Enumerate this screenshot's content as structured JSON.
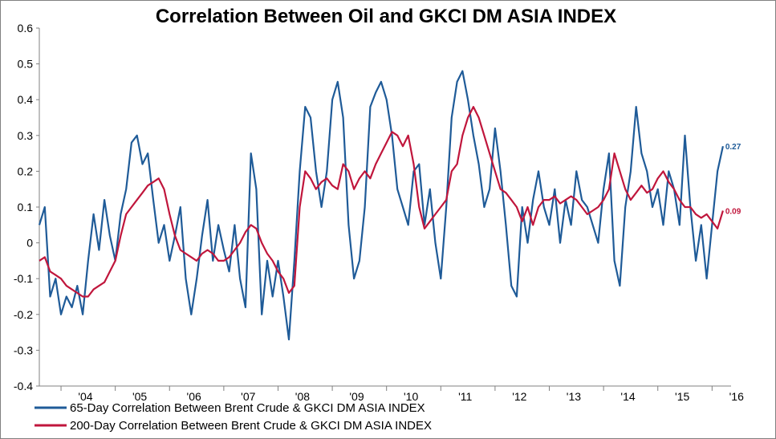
{
  "chart_data": {
    "type": "line",
    "title": "Correlation Between Oil and GKCI DM ASIA INDEX",
    "xlabel": "",
    "ylabel": "",
    "ylim": [
      -0.4,
      0.6
    ],
    "yticks": [
      "0.6",
      "0.5",
      "0.4",
      "0.3",
      "0.2",
      "0.1",
      "0",
      "-0.1",
      "-0.2",
      "-0.3",
      "-0.4"
    ],
    "xticks": [
      "'04",
      "'05",
      "'06",
      "'07",
      "'08",
      "'09",
      "'10",
      "'11",
      "'12",
      "'13",
      "'14",
      "'15",
      "'16"
    ],
    "xlim": [
      2003.6,
      2016.35
    ],
    "grid": false,
    "legend_position": "bottom",
    "series": [
      {
        "name": "65-Day Correlation Between Brent Crude & GKCI DM ASIA INDEX",
        "color": "#1f5b98",
        "end_label": "0.27",
        "x": [
          2003.6,
          2003.7,
          2003.8,
          2003.9,
          2004.0,
          2004.1,
          2004.2,
          2004.3,
          2004.4,
          2004.5,
          2004.6,
          2004.7,
          2004.8,
          2004.9,
          2005.0,
          2005.1,
          2005.2,
          2005.3,
          2005.4,
          2005.5,
          2005.6,
          2005.7,
          2005.8,
          2005.9,
          2006.0,
          2006.1,
          2006.2,
          2006.3,
          2006.4,
          2006.5,
          2006.6,
          2006.7,
          2006.8,
          2006.9,
          2007.0,
          2007.1,
          2007.2,
          2007.3,
          2007.4,
          2007.5,
          2007.6,
          2007.7,
          2007.8,
          2007.9,
          2008.0,
          2008.1,
          2008.2,
          2008.3,
          2008.4,
          2008.5,
          2008.6,
          2008.7,
          2008.8,
          2008.9,
          2009.0,
          2009.1,
          2009.2,
          2009.3,
          2009.4,
          2009.5,
          2009.6,
          2009.7,
          2009.8,
          2009.9,
          2010.0,
          2010.1,
          2010.2,
          2010.3,
          2010.4,
          2010.5,
          2010.6,
          2010.7,
          2010.8,
          2010.9,
          2011.0,
          2011.1,
          2011.2,
          2011.3,
          2011.4,
          2011.5,
          2011.6,
          2011.7,
          2011.8,
          2011.9,
          2012.0,
          2012.1,
          2012.2,
          2012.3,
          2012.4,
          2012.5,
          2012.6,
          2012.7,
          2012.8,
          2012.9,
          2013.0,
          2013.1,
          2013.2,
          2013.3,
          2013.4,
          2013.5,
          2013.6,
          2013.7,
          2013.8,
          2013.9,
          2014.0,
          2014.1,
          2014.2,
          2014.3,
          2014.4,
          2014.5,
          2014.6,
          2014.7,
          2014.8,
          2014.9,
          2015.0,
          2015.1,
          2015.2,
          2015.3,
          2015.4,
          2015.5,
          2015.6,
          2015.7,
          2015.8,
          2015.9,
          2016.0,
          2016.1,
          2016.2
        ],
        "y": [
          0.05,
          0.1,
          -0.15,
          -0.1,
          -0.2,
          -0.15,
          -0.18,
          -0.12,
          -0.2,
          -0.05,
          0.08,
          -0.02,
          0.12,
          0.02,
          -0.05,
          0.08,
          0.15,
          0.28,
          0.3,
          0.22,
          0.25,
          0.12,
          0.0,
          0.05,
          -0.05,
          0.02,
          0.1,
          -0.1,
          -0.2,
          -0.1,
          0.02,
          0.12,
          -0.05,
          0.05,
          -0.02,
          -0.08,
          0.05,
          -0.1,
          -0.18,
          0.25,
          0.15,
          -0.2,
          -0.05,
          -0.15,
          -0.05,
          -0.15,
          -0.27,
          -0.05,
          0.2,
          0.38,
          0.35,
          0.2,
          0.1,
          0.2,
          0.4,
          0.45,
          0.35,
          0.05,
          -0.1,
          -0.05,
          0.1,
          0.38,
          0.42,
          0.45,
          0.4,
          0.3,
          0.15,
          0.1,
          0.05,
          0.2,
          0.22,
          0.05,
          0.15,
          0.0,
          -0.1,
          0.1,
          0.35,
          0.45,
          0.48,
          0.4,
          0.3,
          0.22,
          0.1,
          0.15,
          0.32,
          0.2,
          0.05,
          -0.12,
          -0.15,
          0.1,
          0.0,
          0.12,
          0.2,
          0.1,
          0.05,
          0.15,
          0.0,
          0.12,
          0.05,
          0.2,
          0.12,
          0.1,
          0.05,
          0.0,
          0.15,
          0.25,
          -0.05,
          -0.12,
          0.1,
          0.2,
          0.38,
          0.25,
          0.2,
          0.1,
          0.15,
          0.05,
          0.2,
          0.15,
          0.05,
          0.3,
          0.1,
          -0.05,
          0.05,
          -0.1,
          0.05,
          0.2,
          0.27
        ]
      },
      {
        "name": "200-Day Correlation Between Brent Crude & GKCI DM ASIA INDEX",
        "color": "#c0163c",
        "end_label": "0.09",
        "x": [
          2003.6,
          2003.7,
          2003.8,
          2003.9,
          2004.0,
          2004.1,
          2004.2,
          2004.3,
          2004.4,
          2004.5,
          2004.6,
          2004.7,
          2004.8,
          2004.9,
          2005.0,
          2005.1,
          2005.2,
          2005.3,
          2005.4,
          2005.5,
          2005.6,
          2005.7,
          2005.8,
          2005.9,
          2006.0,
          2006.1,
          2006.2,
          2006.3,
          2006.4,
          2006.5,
          2006.6,
          2006.7,
          2006.8,
          2006.9,
          2007.0,
          2007.1,
          2007.2,
          2007.3,
          2007.4,
          2007.5,
          2007.6,
          2007.7,
          2007.8,
          2007.9,
          2008.0,
          2008.1,
          2008.2,
          2008.3,
          2008.4,
          2008.5,
          2008.6,
          2008.7,
          2008.8,
          2008.9,
          2009.0,
          2009.1,
          2009.2,
          2009.3,
          2009.4,
          2009.5,
          2009.6,
          2009.7,
          2009.8,
          2009.9,
          2010.0,
          2010.1,
          2010.2,
          2010.3,
          2010.4,
          2010.5,
          2010.6,
          2010.7,
          2010.8,
          2010.9,
          2011.0,
          2011.1,
          2011.2,
          2011.3,
          2011.4,
          2011.5,
          2011.6,
          2011.7,
          2011.8,
          2011.9,
          2012.0,
          2012.1,
          2012.2,
          2012.3,
          2012.4,
          2012.5,
          2012.6,
          2012.7,
          2012.8,
          2012.9,
          2013.0,
          2013.1,
          2013.2,
          2013.3,
          2013.4,
          2013.5,
          2013.6,
          2013.7,
          2013.8,
          2013.9,
          2014.0,
          2014.1,
          2014.2,
          2014.3,
          2014.4,
          2014.5,
          2014.6,
          2014.7,
          2014.8,
          2014.9,
          2015.0,
          2015.1,
          2015.2,
          2015.3,
          2015.4,
          2015.5,
          2015.6,
          2015.7,
          2015.8,
          2015.9,
          2016.0,
          2016.1,
          2016.2
        ],
        "y": [
          -0.05,
          -0.04,
          -0.08,
          -0.09,
          -0.1,
          -0.12,
          -0.13,
          -0.14,
          -0.15,
          -0.15,
          -0.13,
          -0.12,
          -0.11,
          -0.08,
          -0.05,
          0.02,
          0.08,
          0.1,
          0.12,
          0.14,
          0.16,
          0.17,
          0.18,
          0.15,
          0.08,
          0.02,
          -0.02,
          -0.03,
          -0.04,
          -0.05,
          -0.03,
          -0.02,
          -0.03,
          -0.05,
          -0.05,
          -0.04,
          -0.02,
          0.0,
          0.03,
          0.05,
          0.04,
          0.0,
          -0.03,
          -0.05,
          -0.08,
          -0.1,
          -0.14,
          -0.12,
          0.1,
          0.2,
          0.18,
          0.15,
          0.17,
          0.18,
          0.16,
          0.15,
          0.22,
          0.2,
          0.15,
          0.18,
          0.2,
          0.18,
          0.22,
          0.25,
          0.28,
          0.31,
          0.3,
          0.27,
          0.3,
          0.22,
          0.1,
          0.04,
          0.06,
          0.08,
          0.1,
          0.12,
          0.2,
          0.22,
          0.3,
          0.35,
          0.38,
          0.35,
          0.3,
          0.25,
          0.2,
          0.15,
          0.14,
          0.12,
          0.1,
          0.06,
          0.1,
          0.05,
          0.1,
          0.12,
          0.12,
          0.13,
          0.11,
          0.12,
          0.13,
          0.12,
          0.1,
          0.08,
          0.09,
          0.1,
          0.12,
          0.15,
          0.25,
          0.2,
          0.15,
          0.12,
          0.14,
          0.16,
          0.14,
          0.15,
          0.18,
          0.2,
          0.17,
          0.15,
          0.12,
          0.1,
          0.1,
          0.08,
          0.07,
          0.08,
          0.06,
          0.04,
          0.09
        ]
      }
    ]
  }
}
